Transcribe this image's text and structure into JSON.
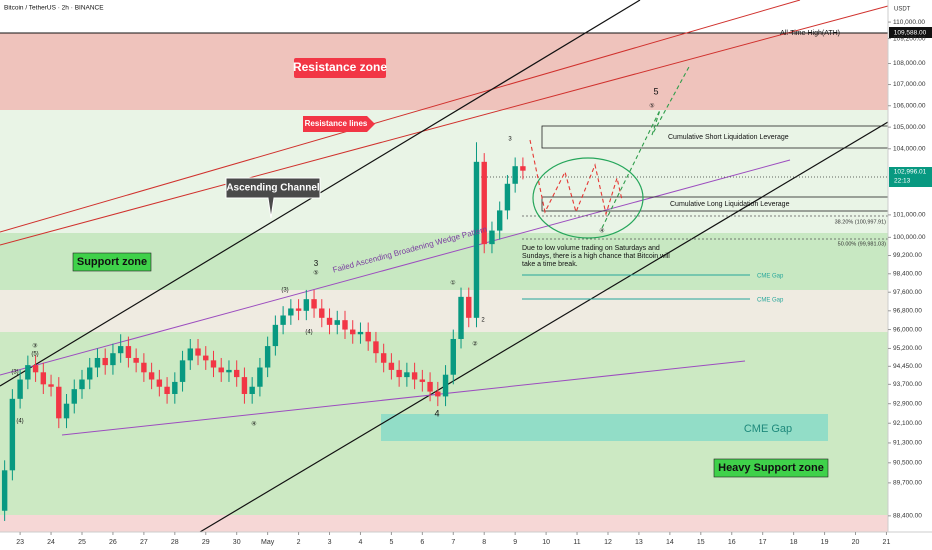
{
  "chart_data": {
    "type": "candlestick",
    "title": "Bitcoin / TetherUS · 2h · BINANCE",
    "ylabel": "USDT",
    "x": [
      -2,
      -1,
      0,
      1,
      2,
      3,
      4,
      5,
      6,
      7,
      8,
      9,
      10,
      11,
      12,
      13,
      14,
      15,
      16,
      17,
      18,
      19,
      20,
      21,
      22,
      23,
      24,
      25,
      26,
      27,
      28,
      29,
      30,
      31,
      32,
      33,
      34,
      35,
      36,
      37,
      38,
      39,
      40,
      41,
      42,
      43,
      44,
      45,
      46,
      47,
      48,
      49,
      50,
      51,
      52,
      53,
      54,
      55,
      56,
      57,
      58,
      59,
      60,
      61,
      62,
      63,
      64,
      65
    ],
    "open": [
      88600,
      90200,
      93100,
      93900,
      94500,
      94200,
      93700,
      93600,
      92300,
      92900,
      93500,
      93900,
      94400,
      94800,
      94500,
      95000,
      95300,
      94800,
      94600,
      94200,
      93900,
      93600,
      93300,
      93800,
      94700,
      95200,
      94900,
      94700,
      94400,
      94200,
      94300,
      94000,
      93300,
      93600,
      94400,
      95300,
      96200,
      96600,
      96900,
      96800,
      97300,
      96900,
      96500,
      96200,
      96400,
      96000,
      95800,
      95900,
      95500,
      95000,
      94600,
      94300,
      94000,
      94200,
      93900,
      93800,
      93400,
      93200,
      94100,
      95600,
      97400,
      96500,
      103400,
      99700,
      100300,
      101200,
      102400,
      103200
    ],
    "high": [
      90600,
      93500,
      94300,
      94900,
      94900,
      94600,
      94100,
      94000,
      93300,
      93900,
      94300,
      94800,
      95200,
      95200,
      95400,
      95800,
      95700,
      95200,
      95000,
      94600,
      94300,
      94000,
      94200,
      95100,
      95600,
      95600,
      95300,
      95100,
      94800,
      94700,
      94700,
      94400,
      94000,
      94800,
      95700,
      96600,
      97000,
      97300,
      97300,
      97700,
      97700,
      97300,
      96900,
      96800,
      96800,
      96400,
      96300,
      96300,
      95900,
      95400,
      95000,
      94700,
      94600,
      94600,
      94300,
      94200,
      93800,
      94500,
      96000,
      97800,
      97800,
      104300,
      103800,
      100700,
      101600,
      102800,
      103600,
      103600
    ],
    "low": [
      88200,
      89800,
      92700,
      93500,
      93800,
      93300,
      93200,
      91900,
      91900,
      92500,
      93100,
      93500,
      94000,
      94100,
      94100,
      94600,
      94400,
      94200,
      93800,
      93500,
      93200,
      92900,
      92900,
      93400,
      94300,
      94500,
      94300,
      94000,
      93800,
      93800,
      93600,
      92900,
      92900,
      93200,
      94000,
      94900,
      95800,
      96200,
      96400,
      96400,
      96500,
      96100,
      95800,
      95800,
      95600,
      95400,
      95400,
      95100,
      94600,
      94200,
      93900,
      93600,
      93600,
      93500,
      93400,
      93000,
      92800,
      92800,
      93700,
      95200,
      96100,
      96100,
      99300,
      99300,
      99900,
      100800,
      102000,
      102600
    ],
    "close": [
      90200,
      93100,
      93900,
      94500,
      94200,
      93700,
      93600,
      92300,
      92900,
      93500,
      93900,
      94400,
      94800,
      94500,
      95000,
      95300,
      94800,
      94600,
      94200,
      93900,
      93600,
      93300,
      93800,
      94700,
      95200,
      94900,
      94700,
      94400,
      94200,
      94300,
      94000,
      93300,
      93600,
      94400,
      95300,
      96200,
      96600,
      96900,
      96800,
      97300,
      96900,
      96500,
      96200,
      96400,
      96000,
      95800,
      95900,
      95500,
      95000,
      94600,
      94300,
      94000,
      94200,
      93900,
      93800,
      93400,
      93200,
      94100,
      95600,
      97400,
      96500,
      103400,
      99700,
      100300,
      101200,
      102400,
      103200,
      102996.01
    ],
    "up_color": "#089981",
    "down_color": "#f23645",
    "xlim": [
      -2.6,
      112.2
    ],
    "ylim": [
      87770,
      111080
    ],
    "log_y": true,
    "xticks": [
      {
        "value": 0,
        "label": "23"
      },
      {
        "value": 4,
        "label": "24"
      },
      {
        "value": 8,
        "label": "25"
      },
      {
        "value": 12,
        "label": "26"
      },
      {
        "value": 16,
        "label": "27"
      },
      {
        "value": 20,
        "label": "28"
      },
      {
        "value": 24,
        "label": "29"
      },
      {
        "value": 28,
        "label": "30"
      },
      {
        "value": 32,
        "label": "May"
      },
      {
        "value": 36,
        "label": "2"
      },
      {
        "value": 40,
        "label": "3"
      },
      {
        "value": 44,
        "label": "4"
      },
      {
        "value": 48,
        "label": "5"
      },
      {
        "value": 52,
        "label": "6"
      },
      {
        "value": 56,
        "label": "7"
      },
      {
        "value": 60,
        "label": "8"
      },
      {
        "value": 64,
        "label": "9"
      },
      {
        "value": 68,
        "label": "10"
      },
      {
        "value": 72,
        "label": "11"
      },
      {
        "value": 76,
        "label": "12"
      },
      {
        "value": 80,
        "label": "13"
      },
      {
        "value": 84,
        "label": "14"
      },
      {
        "value": 88,
        "label": "15"
      },
      {
        "value": 92,
        "label": "16"
      },
      {
        "value": 96,
        "label": "17"
      },
      {
        "value": 100,
        "label": "18"
      },
      {
        "value": 104,
        "label": "19"
      },
      {
        "value": 108,
        "label": "20"
      },
      {
        "value": 112,
        "label": "21"
      }
    ],
    "yticks": [
      {
        "value": 110000,
        "label": "110,000.00"
      },
      {
        "value": 109200,
        "label": "109,200.00"
      },
      {
        "value": 108000,
        "label": "108,000.00"
      },
      {
        "value": 107000,
        "label": "107,000.00"
      },
      {
        "value": 106000,
        "label": "106,000.00"
      },
      {
        "value": 105000,
        "label": "105,000.00"
      },
      {
        "value": 104000,
        "label": "104,000.00"
      },
      {
        "value": 101000,
        "label": "101,000.00"
      },
      {
        "value": 100000,
        "label": "100,000.00"
      },
      {
        "value": 99200,
        "label": "99,200.00"
      },
      {
        "value": 98400,
        "label": "98,400.00"
      },
      {
        "value": 97600,
        "label": "97,600.00"
      },
      {
        "value": 96800,
        "label": "96,800.00"
      },
      {
        "value": 96000,
        "label": "96,000.00"
      },
      {
        "value": 95200,
        "label": "95,200.00"
      },
      {
        "value": 94450,
        "label": "94,450.00"
      },
      {
        "value": 93700,
        "label": "93,700.00"
      },
      {
        "value": 92900,
        "label": "92,900.00"
      },
      {
        "value": 92100,
        "label": "92,100.00"
      },
      {
        "value": 91300,
        "label": "91,300.00"
      },
      {
        "value": 90500,
        "label": "90,500.00"
      },
      {
        "value": 89700,
        "label": "89,700.00"
      },
      {
        "value": 88400,
        "label": "88,400.00"
      }
    ]
  },
  "annotations": {
    "ath_label": "All-Time High(ATH)",
    "ath_price": "109,588.00",
    "last_price": "102,996.01",
    "countdown": "22:13",
    "resistance_zone": "Resistance zone",
    "resistance_lines": "Resistance lines",
    "ascending_channel": "Ascending Channel",
    "support_zone": "Support zone",
    "wedge": "Failed Ascending Broadening Wedge Pattern",
    "short_liq": "Cumulative Short Liquidation Leverage",
    "long_liq": "Cumulative Long Liquidation Leverage",
    "fib_382": "38.20% (100,997.91)",
    "fib_50": "50.00% (99,981.03)",
    "note": [
      "Due to low volume trading on Saturdays and",
      "Sundays, there is a high chance that Bitcoin will",
      "take a time break."
    ],
    "cme_gaps": [
      "CME Gap",
      "CME Gap",
      "CME Gap"
    ],
    "heavy_support": "Heavy Support zone",
    "waves": [
      "3",
      "⑤",
      "(3)",
      "(4)",
      "④",
      "4",
      "①",
      "②",
      "2",
      "5",
      "⑤",
      "3",
      "④",
      "(5)",
      "③",
      "(4)",
      "(3)"
    ]
  }
}
